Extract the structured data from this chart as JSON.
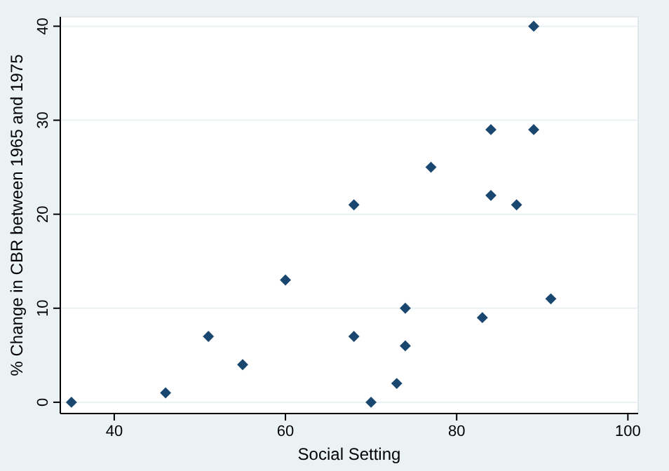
{
  "chart_data": {
    "type": "scatter",
    "xlabel": "Social Setting",
    "ylabel": "% Change in CBR between 1965 and 1975",
    "x": [
      35,
      46,
      51,
      55,
      60,
      68,
      68,
      70,
      73,
      74,
      74,
      77,
      83,
      84,
      84,
      87,
      89,
      89,
      91
    ],
    "series": [
      {
        "color": "#1a476f",
        "values": [
          0,
          1,
          7,
          4,
          13,
          21,
          7,
          0,
          2,
          10,
          6,
          25,
          9,
          29,
          22,
          21,
          40,
          29,
          11
        ]
      }
    ],
    "xlim": [
      33.7,
      101.2
    ],
    "ylim": [
      -1.2,
      41
    ],
    "xticks": [
      40,
      60,
      80,
      100
    ],
    "yticks": [
      0,
      10,
      20,
      30,
      40
    ],
    "grid": "y",
    "marker": "diamond"
  }
}
